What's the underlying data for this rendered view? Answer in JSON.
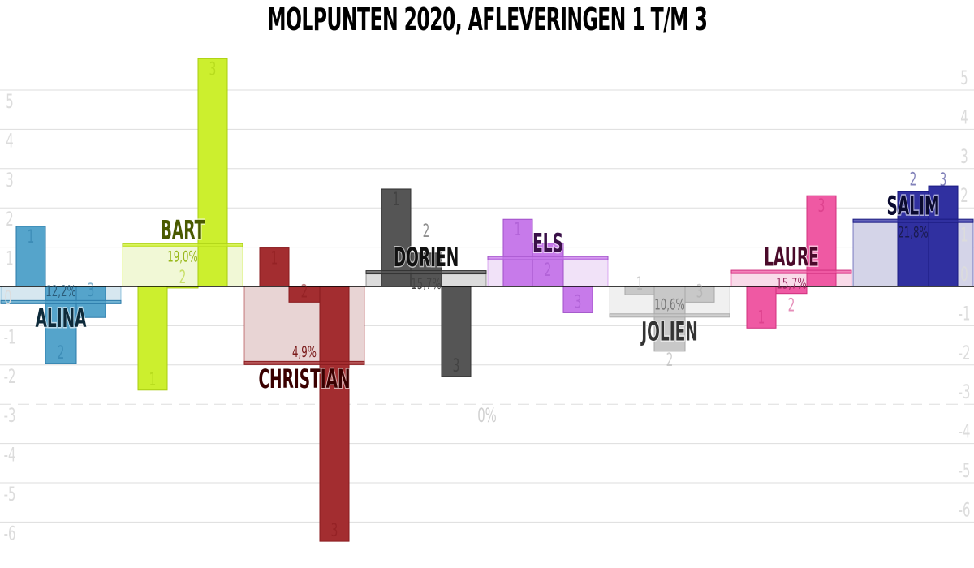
{
  "chart_data": {
    "type": "bar",
    "title": "MOLPUNTEN 2020, AFLEVERINGEN 1 T/M 3",
    "ylim": [
      -6.5,
      5.8
    ],
    "y_ticks": [
      -6,
      -5,
      -4,
      -3,
      -2,
      -1,
      0,
      1,
      2,
      3,
      4,
      5
    ],
    "grid": true,
    "reference_line_label": "0%",
    "episodes": [
      "1",
      "2",
      "3"
    ],
    "series": [
      {
        "name": "ALINA",
        "values": [
          1.53,
          -1.96,
          -0.79
        ],
        "average": -0.41,
        "percent": "12,2%",
        "color": "#55a4cb",
        "border": "#2a7aa8",
        "band": "#d6e7f0",
        "text": "#0d2a3a",
        "pct_color": "#2a5a78"
      },
      {
        "name": "BART",
        "values": [
          -2.64,
          -0.04,
          5.8
        ],
        "average": 1.04,
        "percent": "19,0%",
        "color": "#ccef2e",
        "border": "#a8cc10",
        "band": "#f1f8d6",
        "text": "#4a5a00",
        "pct_color": "#98b81a"
      },
      {
        "name": "CHRISTIAN",
        "values": [
          0.98,
          -0.4,
          -6.49
        ],
        "average": -1.96,
        "percent": "4,9%",
        "color": "#a32d30",
        "border": "#8a1a1e",
        "band": "#e8d4d4",
        "text": "#3a0000",
        "pct_color": "#7a1a1a"
      },
      {
        "name": "DORIEN",
        "values": [
          2.48,
          0.85,
          -2.29
        ],
        "average": 0.35,
        "percent": "15,7%",
        "color": "#555555",
        "border": "#333333",
        "band": "#dcdcdc",
        "text": "#111111",
        "pct_color": "#444444"
      },
      {
        "name": "ELS",
        "values": [
          1.71,
          1.1,
          -0.67
        ],
        "average": 0.71,
        "percent": "",
        "color": "#c77aea",
        "border": "#a050c8",
        "band": "#f1e2f8",
        "text": "#3a1048",
        "pct_color": "#7a3a98"
      },
      {
        "name": "JOLIEN",
        "values": [
          -0.21,
          -1.65,
          -0.4
        ],
        "average": -0.75,
        "percent": "10,6%",
        "color": "#c8c8c8",
        "border": "#a8a8a8",
        "band": "#f0f0f0",
        "text": "#333333",
        "pct_color": "#777777"
      },
      {
        "name": "LAURE",
        "values": [
          -1.06,
          -0.18,
          2.31
        ],
        "average": 0.36,
        "percent": "15,7%",
        "color": "#ef59a3",
        "border": "#d0307e",
        "band": "#f9dbe9",
        "text": "#4a0a2a",
        "pct_color": "#9a2a60"
      },
      {
        "name": "SALIM",
        "values": [
          0,
          2.41,
          2.56
        ],
        "average": 1.66,
        "percent": "21,8%",
        "color": "#3030a0",
        "border": "#1a1a80",
        "band": "#d4d4e8",
        "text": "#0a0a30",
        "pct_color": "#1a1a50"
      }
    ]
  }
}
